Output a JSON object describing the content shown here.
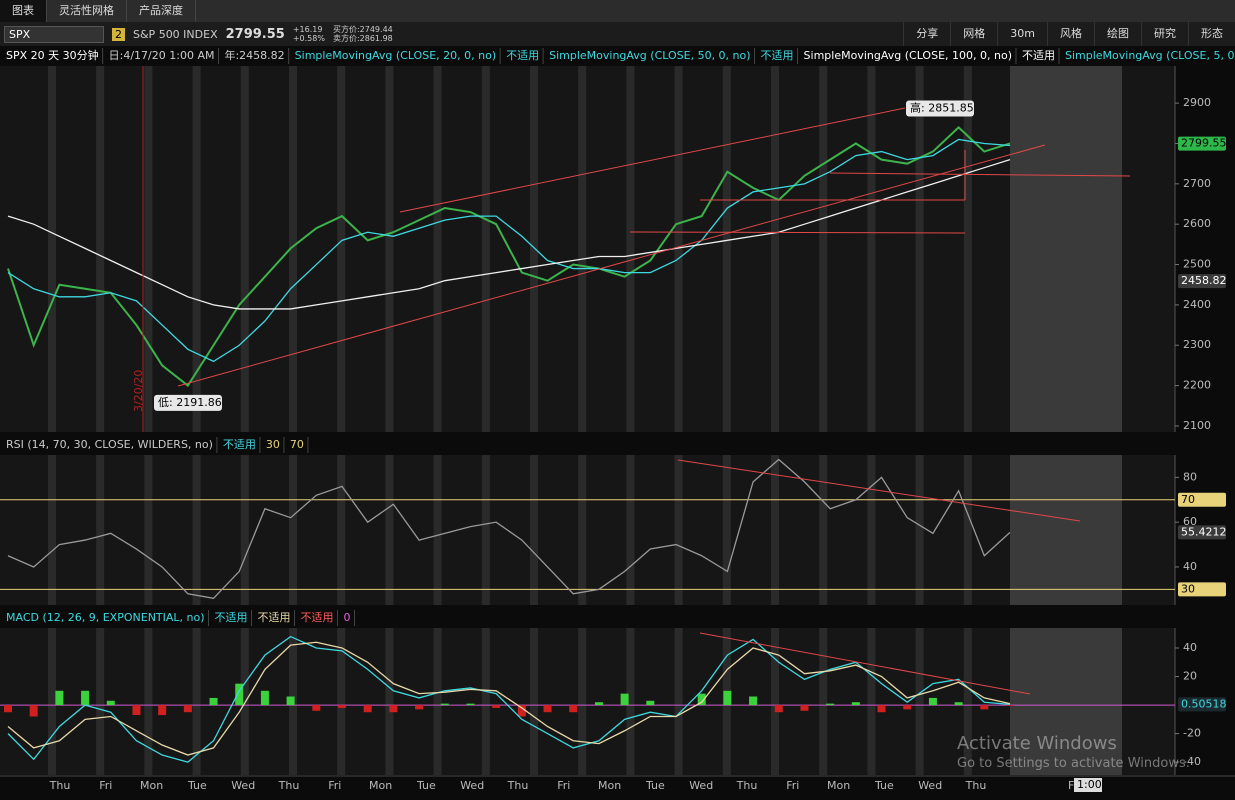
{
  "tabs": [
    "图表",
    "灵活性网格",
    "产品深度"
  ],
  "toolbar": {
    "symbol": "SPX",
    "link": "2",
    "description": "S&P 500 INDEX",
    "last": "2799.55",
    "change": "+16.19",
    "change_pct": "+0.58%",
    "bid": "买方价:2749.44",
    "ask": "卖方价:2861.98",
    "buttons": [
      "分享",
      "网格",
      "30m",
      "风格",
      "绘图",
      "研究",
      "形态"
    ]
  },
  "chart_data": [
    {
      "type": "line",
      "header": [
        {
          "text": "SPX 20 天 30分钟",
          "color": "#ffffff"
        },
        {
          "text": "日:4/17/20 1:00 AM",
          "color": "#cccccc"
        },
        {
          "text": "年:2458.82",
          "color": "#cccccc"
        },
        {
          "text": "SimpleMovingAvg (CLOSE, 20, 0, no)",
          "color": "#3fd8e0"
        },
        {
          "text": "不适用",
          "color": "#3fd8e0"
        },
        {
          "text": "SimpleMovingAvg (CLOSE, 50, 0, no)",
          "color": "#3fd8e0"
        },
        {
          "text": "不适用",
          "color": "#3fd8e0"
        },
        {
          "text": "SimpleMovingAvg (CLOSE, 100, 0, no)",
          "color": "#ffffff"
        },
        {
          "text": "不适用",
          "color": "#ffffff"
        },
        {
          "text": "SimpleMovingAvg (CLOSE, 5, 0,...",
          "color": "#3fd8e0"
        }
      ],
      "ylim": [
        2085,
        2992
      ],
      "yticks": [
        2100,
        2200,
        2300,
        2400,
        2500,
        2600,
        2700,
        2800,
        2900
      ],
      "series": [
        {
          "name": "Close",
          "color": "#3cb44b",
          "values": [
            2490,
            2300,
            2450,
            2440,
            2430,
            2350,
            2250,
            2200,
            2300,
            2400,
            2470,
            2540,
            2590,
            2620,
            2560,
            2580,
            2610,
            2640,
            2630,
            2600,
            2480,
            2460,
            2500,
            2490,
            2470,
            2510,
            2600,
            2620,
            2730,
            2690,
            2660,
            2720,
            2760,
            2800,
            2760,
            2750,
            2780,
            2840,
            2780,
            2800
          ]
        },
        {
          "name": "SMA20",
          "color": "#3fd8e0",
          "values": [
            2480,
            2440,
            2420,
            2420,
            2430,
            2410,
            2350,
            2290,
            2260,
            2300,
            2360,
            2440,
            2500,
            2560,
            2580,
            2570,
            2590,
            2610,
            2620,
            2620,
            2570,
            2510,
            2490,
            2490,
            2480,
            2480,
            2510,
            2560,
            2640,
            2680,
            2690,
            2700,
            2730,
            2770,
            2780,
            2760,
            2770,
            2810,
            2800,
            2795
          ]
        },
        {
          "name": "SMA100",
          "color": "#f0f0f0",
          "values": [
            2620,
            2600,
            2570,
            2540,
            2510,
            2480,
            2450,
            2420,
            2400,
            2390,
            2390,
            2390,
            2400,
            2410,
            2420,
            2430,
            2440,
            2460,
            2470,
            2480,
            2490,
            2500,
            2510,
            2520,
            2520,
            2530,
            2540,
            2550,
            2560,
            2570,
            2580,
            2600,
            2620,
            2640,
            2660,
            2680,
            2700,
            2720,
            2740,
            2760
          ]
        }
      ],
      "markers": [
        {
          "value": 2799.55,
          "color": "#2eb84a",
          "text_color": "#000000"
        },
        {
          "value": 2458.82,
          "color": "#3a3a3a",
          "text_color": "#ffffff"
        }
      ],
      "annotations": [
        {
          "label": "高: 2851.85",
          "value": 2851.85
        },
        {
          "label": "低: 2191.86",
          "value": 2191.86
        }
      ],
      "event_label": "3/20/20"
    },
    {
      "type": "line",
      "header": [
        {
          "text": "RSI (14, 70, 30, CLOSE, WILDERS, no)",
          "color": "#cccccc"
        },
        {
          "text": "不适用",
          "color": "#3fd8e0"
        },
        {
          "text": "30",
          "color": "#e8d27a"
        },
        {
          "text": "70",
          "color": "#e8d27a"
        }
      ],
      "ylim": [
        23,
        90
      ],
      "yticks": [
        40,
        60,
        80
      ],
      "levels": [
        {
          "value": 70,
          "color": "#e8d27a"
        },
        {
          "value": 30,
          "color": "#e8d27a"
        }
      ],
      "series": [
        {
          "name": "RSI",
          "color": "#9a9a9a",
          "values": [
            45,
            40,
            50,
            52,
            55,
            48,
            40,
            28,
            26,
            38,
            66,
            62,
            72,
            76,
            60,
            68,
            52,
            55,
            58,
            60,
            52,
            40,
            28,
            30,
            38,
            48,
            50,
            45,
            38,
            78,
            88,
            78,
            66,
            70,
            80,
            62,
            55,
            74,
            45,
            55.42
          ]
        }
      ],
      "markers": [
        {
          "value": 70,
          "color": "#e8d27a",
          "text_color": "#000000"
        },
        {
          "value": 30,
          "color": "#e8d27a",
          "text_color": "#000000"
        },
        {
          "value": 55.4212,
          "color": "#3a3a3a",
          "text_color": "#ffffff"
        }
      ]
    },
    {
      "type": "line",
      "header": [
        {
          "text": "MACD (12, 26, 9, EXPONENTIAL, no)",
          "color": "#3fd8e0"
        },
        {
          "text": "不适用",
          "color": "#3fd8e0"
        },
        {
          "text": "不适用",
          "color": "#e8d9a8"
        },
        {
          "text": "不适用",
          "color": "#ff5a5a"
        },
        {
          "text": "0",
          "color": "#e060e0"
        }
      ],
      "ylim": [
        -49,
        54
      ],
      "yticks": [
        -40,
        -20,
        20,
        40
      ],
      "levels": [
        {
          "value": 0,
          "color": "#d05ad0"
        }
      ],
      "series": [
        {
          "name": "Diff",
          "type": "bar",
          "color": "#3cd23c",
          "negative_color": "#d02020",
          "values": [
            -5,
            -8,
            10,
            10,
            3,
            -7,
            -7,
            -5,
            5,
            15,
            10,
            6,
            -4,
            -2,
            -5,
            -5,
            -3,
            1,
            1,
            -2,
            -8,
            -5,
            -5,
            2,
            8,
            3,
            0,
            8,
            10,
            6,
            -5,
            -4,
            1,
            2,
            -5,
            -3,
            5,
            2,
            -3,
            -0.5
          ]
        },
        {
          "name": "Value",
          "color": "#3fd8e0",
          "values": [
            -20,
            -38,
            -15,
            0,
            -5,
            -25,
            -35,
            -40,
            -25,
            10,
            35,
            48,
            40,
            38,
            25,
            10,
            5,
            10,
            12,
            8,
            -10,
            -20,
            -30,
            -25,
            -10,
            -5,
            -8,
            10,
            35,
            46,
            30,
            18,
            25,
            30,
            15,
            2,
            15,
            18,
            2,
            0.5
          ]
        },
        {
          "name": "Avg",
          "color": "#e8d9a8",
          "values": [
            -15,
            -30,
            -25,
            -10,
            -8,
            -18,
            -28,
            -35,
            -30,
            -5,
            25,
            42,
            44,
            40,
            30,
            15,
            8,
            9,
            11,
            10,
            -2,
            -15,
            -25,
            -27,
            -18,
            -8,
            -8,
            2,
            25,
            40,
            35,
            22,
            24,
            28,
            20,
            5,
            10,
            16,
            5,
            1
          ]
        }
      ],
      "markers": [
        {
          "value": 0.50518,
          "color": "#1c2a30",
          "text_color": "#3fd8e0"
        }
      ],
      "x_labels": [
        "Thu",
        "Fri",
        "Mon",
        "Tue",
        "Wed",
        "Thu",
        "Fri",
        "Mon",
        "Tue",
        "Wed",
        "Thu",
        "Fri",
        "Mon",
        "Tue",
        "Wed",
        "Thu",
        "Fri",
        "Mon",
        "Tue",
        "Wed",
        "Thu"
      ],
      "cursor_day": "F",
      "cursor_time": "1:00"
    }
  ],
  "watermark": {
    "title": "Activate Windows",
    "subtitle": "Go to Settings to activate Windows."
  }
}
